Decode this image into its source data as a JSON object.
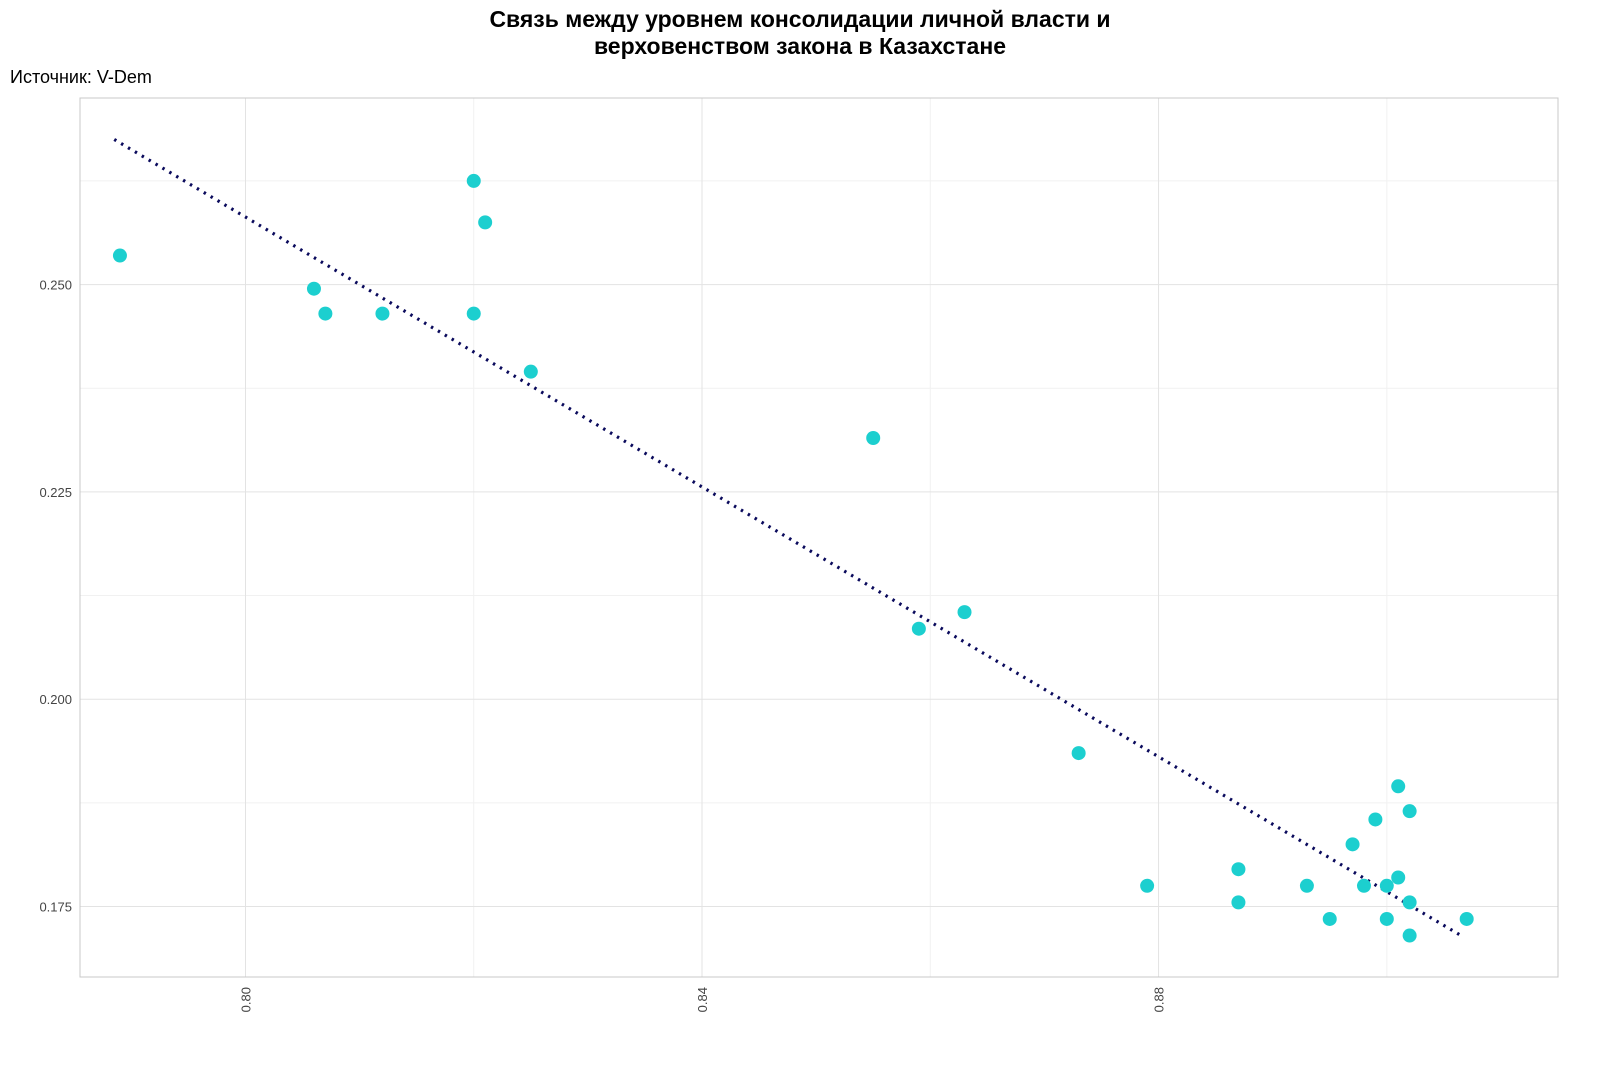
{
  "chart_data": {
    "type": "scatter",
    "title_lines": [
      "Связь между уровнем консолидации личной власти и",
      "верховенством закона в Казахстане"
    ],
    "subtitle": "Источник: V-Dem",
    "xlabel": "",
    "ylabel": "",
    "xlim": [
      0.7855,
      0.915
    ],
    "ylim": [
      0.1665,
      0.2725
    ],
    "x_ticks": [
      0.8,
      0.84,
      0.88
    ],
    "x_tick_labels": [
      "0.80",
      "0.84",
      "0.88"
    ],
    "y_ticks": [
      0.175,
      0.2,
      0.225,
      0.25
    ],
    "y_tick_labels": [
      "0.175",
      "0.200",
      "0.225",
      "0.250"
    ],
    "grid": true,
    "point_color": "#1ccfcf",
    "trend_color": "#0a0a5c",
    "trendline": {
      "x": [
        0.7885,
        0.9065
      ],
      "y": [
        0.2675,
        0.1715
      ]
    },
    "points": [
      {
        "x": 0.789,
        "y": 0.2535
      },
      {
        "x": 0.806,
        "y": 0.2495
      },
      {
        "x": 0.807,
        "y": 0.2465
      },
      {
        "x": 0.812,
        "y": 0.2465
      },
      {
        "x": 0.82,
        "y": 0.2625
      },
      {
        "x": 0.821,
        "y": 0.2575
      },
      {
        "x": 0.82,
        "y": 0.2465
      },
      {
        "x": 0.825,
        "y": 0.2395
      },
      {
        "x": 0.855,
        "y": 0.2315
      },
      {
        "x": 0.859,
        "y": 0.2085
      },
      {
        "x": 0.863,
        "y": 0.2105
      },
      {
        "x": 0.873,
        "y": 0.1935
      },
      {
        "x": 0.879,
        "y": 0.1775
      },
      {
        "x": 0.887,
        "y": 0.1795
      },
      {
        "x": 0.887,
        "y": 0.1755
      },
      {
        "x": 0.893,
        "y": 0.1775
      },
      {
        "x": 0.895,
        "y": 0.1735
      },
      {
        "x": 0.897,
        "y": 0.1825
      },
      {
        "x": 0.898,
        "y": 0.1775
      },
      {
        "x": 0.899,
        "y": 0.1855
      },
      {
        "x": 0.9,
        "y": 0.1775
      },
      {
        "x": 0.9,
        "y": 0.1735
      },
      {
        "x": 0.901,
        "y": 0.1895
      },
      {
        "x": 0.901,
        "y": 0.1785
      },
      {
        "x": 0.902,
        "y": 0.1865
      },
      {
        "x": 0.902,
        "y": 0.1755
      },
      {
        "x": 0.902,
        "y": 0.1715
      },
      {
        "x": 0.907,
        "y": 0.1735
      }
    ]
  }
}
